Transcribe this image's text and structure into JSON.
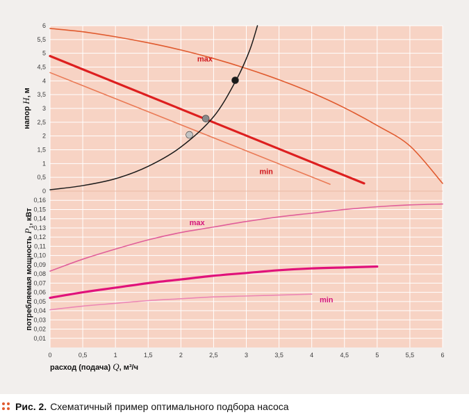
{
  "chart_data": [
    {
      "type": "line",
      "name": "head-chart",
      "ylabel_pre": "напор ",
      "ylabel_var": "H",
      "ylabel_post": ", м",
      "ylim": [
        0,
        6
      ],
      "xlim": [
        0,
        6
      ],
      "yticks": [
        "0",
        "0,5",
        "1",
        "1,5",
        "2",
        "2,5",
        "3",
        "3,5",
        "4",
        "4,5",
        "5",
        "5,5",
        "6"
      ],
      "series": [
        {
          "name": "max",
          "label": "max",
          "color": "#e05a2e",
          "width": 1.6,
          "points": [
            [
              0,
              5.9
            ],
            [
              0.5,
              5.78
            ],
            [
              1,
              5.6
            ],
            [
              1.5,
              5.38
            ],
            [
              2,
              5.12
            ],
            [
              2.5,
              4.81
            ],
            [
              3,
              4.45
            ],
            [
              3.5,
              4.04
            ],
            [
              4,
              3.57
            ],
            [
              4.5,
              3.02
            ],
            [
              5,
              2.38
            ],
            [
              5.5,
              1.64
            ],
            [
              6,
              0.28
            ]
          ]
        },
        {
          "name": "middle",
          "label": "",
          "color": "#dd1f1f",
          "width": 3.2,
          "points": [
            [
              0,
              4.9
            ],
            [
              4.8,
              0.28
            ]
          ]
        },
        {
          "name": "min",
          "label": "min",
          "color": "#ea7a56",
          "width": 1.6,
          "points": [
            [
              0,
              4.3
            ],
            [
              4.28,
              0.25
            ]
          ]
        },
        {
          "name": "system",
          "label": "",
          "color": "#1a1a1a",
          "width": 1.5,
          "points": [
            [
              0,
              0.05
            ],
            [
              0.5,
              0.2
            ],
            [
              1,
              0.45
            ],
            [
              1.5,
              0.9
            ],
            [
              2,
              1.6
            ],
            [
              2.5,
              2.7
            ],
            [
              2.85,
              4.05
            ],
            [
              3.05,
              5.1
            ],
            [
              3.17,
              6.0
            ]
          ]
        }
      ],
      "operating_points": [
        {
          "name": "max-point",
          "x": 2.83,
          "y": 4.02,
          "color": "#1a1a1a"
        },
        {
          "name": "middle-point",
          "x": 2.38,
          "y": 2.63,
          "color": "#8a8a8a"
        },
        {
          "name": "min-point",
          "x": 2.13,
          "y": 2.04,
          "color": "#c4c4c4"
        }
      ],
      "annotations": [
        {
          "text": "max",
          "x": 2.25,
          "y": 4.7,
          "color": "#d0161d"
        },
        {
          "text": "min",
          "x": 3.2,
          "y": 0.62,
          "color": "#d0161d"
        }
      ]
    },
    {
      "type": "line",
      "name": "power-chart",
      "ylabel_pre": "потребляемая мощность ",
      "ylabel_var": "P",
      "ylabel_sub": "1",
      "ylabel_post": ", кВт",
      "ylim": [
        0,
        0.17
      ],
      "xlim": [
        0,
        6
      ],
      "yticks": [
        "0,01",
        "0,02",
        "0,03",
        "0,04",
        "0,05",
        "0,06",
        "0,07",
        "0,08",
        "0,09",
        "0,10",
        "0,11",
        "0,12",
        "0,13",
        "0,14",
        "0,15",
        "0,16"
      ],
      "series": [
        {
          "name": "max",
          "label": "max",
          "color": "#e05e9a",
          "width": 1.6,
          "points": [
            [
              0,
              0.083
            ],
            [
              0.5,
              0.096
            ],
            [
              1,
              0.107
            ],
            [
              1.5,
              0.117
            ],
            [
              2,
              0.125
            ],
            [
              2.5,
              0.131
            ],
            [
              3,
              0.137
            ],
            [
              3.5,
              0.142
            ],
            [
              4,
              0.146
            ],
            [
              4.5,
              0.15
            ],
            [
              5,
              0.153
            ],
            [
              5.5,
              0.155
            ],
            [
              6,
              0.156
            ]
          ]
        },
        {
          "name": "middle",
          "label": "",
          "color": "#e0127a",
          "width": 3.2,
          "points": [
            [
              0,
              0.054
            ],
            [
              0.5,
              0.06
            ],
            [
              1,
              0.065
            ],
            [
              1.5,
              0.07
            ],
            [
              2,
              0.074
            ],
            [
              2.5,
              0.078
            ],
            [
              3,
              0.081
            ],
            [
              3.5,
              0.084
            ],
            [
              4,
              0.086
            ],
            [
              4.5,
              0.087
            ],
            [
              5,
              0.088
            ]
          ]
        },
        {
          "name": "min",
          "label": "min",
          "color": "#ec86b4",
          "width": 1.6,
          "points": [
            [
              0,
              0.041
            ],
            [
              0.5,
              0.045
            ],
            [
              1,
              0.048
            ],
            [
              1.5,
              0.051
            ],
            [
              2,
              0.053
            ],
            [
              2.5,
              0.055
            ],
            [
              3,
              0.056
            ],
            [
              3.5,
              0.057
            ],
            [
              4,
              0.058
            ]
          ]
        }
      ],
      "annotations": [
        {
          "text": "max",
          "x": 2.13,
          "y": 0.133,
          "color": "#d4157c"
        },
        {
          "text": "min",
          "x": 4.12,
          "y": 0.049,
          "color": "#d4157c"
        }
      ]
    }
  ],
  "x_axis": {
    "label_pre": "расход (подача) ",
    "label_var": "Q",
    "label_post": ", м³/ч",
    "ticks": [
      "0",
      "0,5",
      "1",
      "1,5",
      "2",
      "2,5",
      "3",
      "3,5",
      "4",
      "4,5",
      "5",
      "5,5",
      "6"
    ]
  },
  "caption": {
    "prefix": "Рис. 2.",
    "text": "Схематичный пример оптимального подбора насоса"
  },
  "colors": {
    "panel_bg": "#f2efed",
    "plot_bg": "#f7d3c4",
    "grid": "#ffffff",
    "caption_dots": "#e05a2e"
  }
}
